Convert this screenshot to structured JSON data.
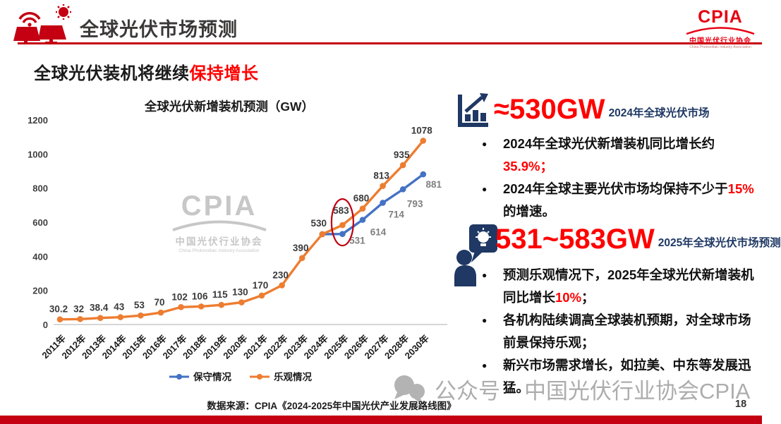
{
  "header": {
    "title": "全球光伏市场预测",
    "logo": {
      "brand": "CPIA",
      "cn": "中国光伏行业协会",
      "en": "China Photovoltaic Industry Association"
    }
  },
  "subtitle": {
    "prefix": "全球光伏装机将继续",
    "highlight": "保持增长"
  },
  "chart_data": {
    "type": "line",
    "title": "全球光伏新增装机预测（GW）",
    "categories": [
      "2011年",
      "2012年",
      "2013年",
      "2014年",
      "2015年",
      "2016年",
      "2017年",
      "2018年",
      "2019年",
      "2020年",
      "2021年",
      "2022年",
      "2023年",
      "2024年",
      "2025年",
      "2026年",
      "2027年",
      "2028年",
      "2030年"
    ],
    "series": [
      {
        "name": "保守情况",
        "color": "#4472C4",
        "values": [
          null,
          null,
          null,
          null,
          null,
          null,
          null,
          null,
          null,
          null,
          null,
          null,
          null,
          530,
          531,
          614,
          714,
          793,
          881
        ]
      },
      {
        "name": "乐观情况",
        "color": "#ED7D31",
        "values": [
          30.2,
          32,
          38.4,
          43,
          53,
          70,
          102,
          106,
          115,
          130,
          170,
          230,
          390,
          530,
          583,
          680,
          813,
          935,
          1078
        ]
      }
    ],
    "xlabel": "",
    "ylabel": "",
    "ylim": [
      0,
      1200
    ],
    "yticks": [
      0,
      200,
      400,
      600,
      800,
      1000,
      1200
    ],
    "grid": false,
    "legend_position": "bottom",
    "annotation": {
      "type": "ellipse",
      "x": "2025年",
      "around_values": [
        583,
        531
      ],
      "color": "#C00012"
    }
  },
  "right_panel": {
    "sections": [
      {
        "icon": "bar-chart-growth-icon",
        "headline_value": "≈530GW",
        "headline_caption": "2024年全球光伏市场",
        "bullets": [
          [
            {
              "t": "2024年全球光伏新增装机同比增长约"
            },
            {
              "t": "35.9%；",
              "red": true
            }
          ],
          [
            {
              "t": "2024年全球主要光伏市场均保持不少于"
            },
            {
              "t": "15%",
              "red": true
            },
            {
              "t": "\n的增速。"
            }
          ]
        ]
      },
      {
        "icon": "idea-person-icon",
        "headline_value": "531~583GW",
        "headline_caption": "2025年全球光伏市场预测",
        "bullets": [
          [
            {
              "t": "预测乐观情况下，2025年全球光伏新增装机\n同比增长"
            },
            {
              "t": "10%",
              "red": true
            },
            {
              "t": "；"
            }
          ],
          [
            {
              "t": "各机构陆续调高全球装机预期，对全球市场\n前景保持乐观；"
            }
          ],
          [
            {
              "t": "新兴市场需求增长，如拉美、中东等发展迅\n猛。"
            }
          ]
        ]
      }
    ]
  },
  "watermarks": {
    "chart_logo": {
      "brand": "CPIA",
      "cn": "中国光伏行业协会",
      "en": "China Photovoltaic Industry Association"
    },
    "bottom": {
      "prefix": "公众号",
      "text": "中国光伏行业协会CPIA"
    }
  },
  "footer": {
    "source": "数据来源：CPIA《2024-2025年中国光伏产业发展路线图》",
    "page_number": "18"
  },
  "colors": {
    "accent_red": "#FF0000",
    "dark_red": "#C40012",
    "navy": "#1F3864",
    "optimistic_orange": "#ED7D31",
    "conservative_blue": "#4472C4",
    "watermark_gray": "#C7C7C7"
  }
}
